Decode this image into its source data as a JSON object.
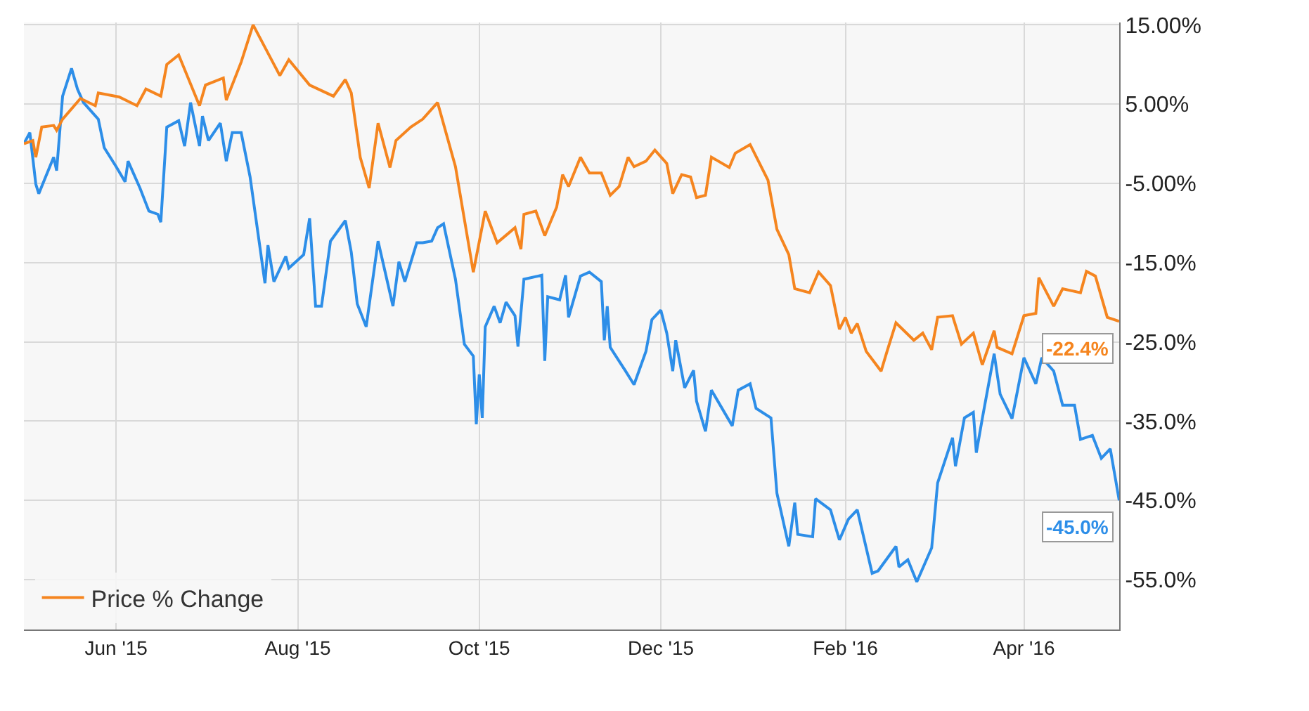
{
  "chart_data": {
    "type": "line",
    "xlim": [
      "2015-05-01",
      "2016-05-03"
    ],
    "xticks": [
      {
        "value": "2015-06-01",
        "label": "Jun '15"
      },
      {
        "value": "2015-08-01",
        "label": "Aug '15"
      },
      {
        "value": "2015-10-01",
        "label": "Oct '15"
      },
      {
        "value": "2015-12-01",
        "label": "Dec '15"
      },
      {
        "value": "2016-02-01",
        "label": "Feb '16"
      },
      {
        "value": "2016-04-01",
        "label": "Apr '16"
      }
    ],
    "ylim": [
      -61.3,
      15.3
    ],
    "yticks": [
      {
        "value": 15,
        "label": "15.00%"
      },
      {
        "value": 5,
        "label": "5.00%"
      },
      {
        "value": -5,
        "label": "-5.00%"
      },
      {
        "value": -15,
        "label": "-15.0%"
      },
      {
        "value": -25,
        "label": "-25.0%"
      },
      {
        "value": -35,
        "label": "-35.0%"
      },
      {
        "value": -45,
        "label": "-45.0%"
      },
      {
        "value": -55,
        "label": "-55.0%"
      }
    ],
    "grid": true,
    "legend": "bottom left",
    "annotations": [
      {
        "text": "-45.0%",
        "x": "2016-05-03",
        "y": -45.0
      },
      {
        "text": "-22.4%",
        "x": "2016-05-03",
        "y": -22.4
      }
    ],
    "marker": "none",
    "line_style": "solid",
    "series": [
      {
        "color": "#2d8ee8",
        "x": [
          "2015-05-01",
          "2015-05-03",
          "2015-05-05",
          "2015-05-06",
          "2015-05-11",
          "2015-05-12",
          "2015-05-14",
          "2015-05-17",
          "2015-05-19",
          "2015-05-21",
          "2015-05-26",
          "2015-05-28",
          "2015-06-01",
          "2015-06-04",
          "2015-06-05",
          "2015-06-09",
          "2015-06-12",
          "2015-06-15",
          "2015-06-16",
          "2015-06-18",
          "2015-06-22",
          "2015-06-24",
          "2015-06-26",
          "2015-06-29",
          "2015-06-30",
          "2015-07-02",
          "2015-07-06",
          "2015-07-08",
          "2015-07-10",
          "2015-07-13",
          "2015-07-16",
          "2015-07-21",
          "2015-07-22",
          "2015-07-24",
          "2015-07-28",
          "2015-07-29",
          "2015-08-03",
          "2015-08-05",
          "2015-08-07",
          "2015-08-09",
          "2015-08-12",
          "2015-08-17",
          "2015-08-19",
          "2015-08-21",
          "2015-08-24",
          "2015-08-28",
          "2015-09-02",
          "2015-09-04",
          "2015-09-06",
          "2015-09-10",
          "2015-09-12",
          "2015-09-15",
          "2015-09-17",
          "2015-09-19",
          "2015-09-23",
          "2015-09-26",
          "2015-09-29",
          "2015-09-30",
          "2015-10-01",
          "2015-10-02",
          "2015-10-03",
          "2015-10-06",
          "2015-10-08",
          "2015-10-10",
          "2015-10-13",
          "2015-10-14",
          "2015-10-16",
          "2015-10-22",
          "2015-10-23",
          "2015-10-24",
          "2015-10-28",
          "2015-10-30",
          "2015-10-31",
          "2015-11-04",
          "2015-11-07",
          "2015-11-11",
          "2015-11-12",
          "2015-11-13",
          "2015-11-14",
          "2015-11-19",
          "2015-11-22",
          "2015-11-26",
          "2015-11-28",
          "2015-12-01",
          "2015-12-03",
          "2015-12-05",
          "2015-12-06",
          "2015-12-09",
          "2015-12-12",
          "2015-12-13",
          "2015-12-16",
          "2015-12-18",
          "2015-12-25",
          "2015-12-27",
          "2015-12-31",
          "2016-01-02",
          "2016-01-07",
          "2016-01-09",
          "2016-01-13",
          "2016-01-15",
          "2016-01-16",
          "2016-01-21",
          "2016-01-22",
          "2016-01-27",
          "2016-01-30",
          "2016-02-02",
          "2016-02-05",
          "2016-02-10",
          "2016-02-12",
          "2016-02-18",
          "2016-02-19",
          "2016-02-22",
          "2016-02-25",
          "2016-03-01",
          "2016-03-03",
          "2016-03-08",
          "2016-03-09",
          "2016-03-12",
          "2016-03-15",
          "2016-03-16",
          "2016-03-18",
          "2016-03-22",
          "2016-03-24",
          "2016-03-28",
          "2016-04-01",
          "2016-04-05",
          "2016-04-07",
          "2016-04-11",
          "2016-04-14",
          "2016-04-18",
          "2016-04-20",
          "2016-04-24",
          "2016-04-27",
          "2016-04-30",
          "2016-05-03"
        ],
        "values": [
          0.0,
          1.4,
          -5.1,
          -6.3,
          -1.7,
          -3.4,
          6.0,
          9.5,
          6.9,
          5.2,
          3.1,
          -0.5,
          -2.9,
          -4.8,
          -2.2,
          -5.6,
          -8.5,
          -8.9,
          -9.9,
          2.1,
          2.9,
          -0.3,
          5.2,
          -0.3,
          3.5,
          0.4,
          2.6,
          -2.2,
          1.4,
          1.4,
          -4.2,
          -17.6,
          -12.8,
          -17.4,
          -14.2,
          -15.7,
          -14.0,
          -9.4,
          -20.5,
          -20.5,
          -12.3,
          -9.7,
          -13.7,
          -20.2,
          -23.1,
          -12.3,
          -20.5,
          -14.9,
          -17.4,
          -12.5,
          -12.5,
          -12.3,
          -10.6,
          -10.1,
          -17.1,
          -25.3,
          -26.8,
          -35.4,
          -29.1,
          -34.6,
          -23.1,
          -20.5,
          -22.6,
          -20.0,
          -21.7,
          -25.6,
          -17.1,
          -16.6,
          -27.4,
          -19.3,
          -19.7,
          -16.6,
          -21.9,
          -16.7,
          -16.2,
          -17.4,
          -24.8,
          -20.5,
          -25.7,
          -28.6,
          -30.4,
          -26.2,
          -22.2,
          -21.0,
          -23.9,
          -28.7,
          -24.8,
          -30.8,
          -28.6,
          -32.5,
          -36.3,
          -31.1,
          -35.6,
          -31.1,
          -30.3,
          -33.4,
          -34.6,
          -44.1,
          -50.8,
          -45.3,
          -49.3,
          -49.6,
          -44.8,
          -46.2,
          -50.0,
          -47.4,
          -46.2,
          -54.2,
          -53.9,
          -50.8,
          -53.4,
          -52.5,
          -55.3,
          -51.0,
          -42.8,
          -37.1,
          -40.7,
          -34.6,
          -33.9,
          -39.0,
          -34.7,
          -26.5,
          -31.6,
          -34.7,
          -27.0,
          -30.3,
          -27.0,
          -28.7,
          -33.0,
          -33.0,
          -37.3,
          -36.8,
          -39.7,
          -38.5,
          -45.0
        ]
      },
      {
        "name": "Price % Change",
        "color": "#f5851f",
        "x": [
          "2015-05-01",
          "2015-05-04",
          "2015-05-05",
          "2015-05-07",
          "2015-05-11",
          "2015-05-12",
          "2015-05-14",
          "2015-05-20",
          "2015-05-25",
          "2015-05-26",
          "2015-06-02",
          "2015-06-08",
          "2015-06-11",
          "2015-06-16",
          "2015-06-18",
          "2015-06-22",
          "2015-06-29",
          "2015-07-01",
          "2015-07-07",
          "2015-07-08",
          "2015-07-13",
          "2015-07-17",
          "2015-07-26",
          "2015-07-29",
          "2015-08-05",
          "2015-08-13",
          "2015-08-17",
          "2015-08-19",
          "2015-08-22",
          "2015-08-25",
          "2015-08-28",
          "2015-09-01",
          "2015-09-03",
          "2015-09-08",
          "2015-09-12",
          "2015-09-17",
          "2015-09-23",
          "2015-09-29",
          "2015-10-03",
          "2015-10-07",
          "2015-10-13",
          "2015-10-15",
          "2015-10-16",
          "2015-10-20",
          "2015-10-23",
          "2015-10-27",
          "2015-10-29",
          "2015-10-31",
          "2015-11-04",
          "2015-11-07",
          "2015-11-11",
          "2015-11-14",
          "2015-11-17",
          "2015-11-20",
          "2015-11-22",
          "2015-11-26",
          "2015-11-29",
          "2015-12-03",
          "2015-12-05",
          "2015-12-08",
          "2015-12-11",
          "2015-12-13",
          "2015-12-16",
          "2015-12-18",
          "2015-12-24",
          "2015-12-26",
          "2015-12-31",
          "2016-01-06",
          "2016-01-09",
          "2016-01-13",
          "2016-01-15",
          "2016-01-20",
          "2016-01-23",
          "2016-01-27",
          "2016-01-30",
          "2016-02-01",
          "2016-02-03",
          "2016-02-05",
          "2016-02-08",
          "2016-02-13",
          "2016-02-15",
          "2016-02-18",
          "2016-02-24",
          "2016-02-27",
          "2016-03-01",
          "2016-03-03",
          "2016-03-08",
          "2016-03-11",
          "2016-03-15",
          "2016-03-18",
          "2016-03-22",
          "2016-03-23",
          "2016-03-28",
          "2016-04-01",
          "2016-04-05",
          "2016-04-06",
          "2016-04-11",
          "2016-04-14",
          "2016-04-20",
          "2016-04-22",
          "2016-04-25",
          "2016-04-29",
          "2016-05-03"
        ],
        "values": [
          0.0,
          0.4,
          -1.7,
          2.1,
          2.3,
          1.7,
          3.1,
          5.7,
          4.8,
          6.4,
          5.9,
          4.8,
          6.9,
          6.0,
          10.0,
          11.2,
          4.8,
          7.4,
          8.3,
          5.5,
          10.3,
          15.0,
          8.6,
          10.6,
          7.4,
          6.0,
          8.1,
          6.4,
          -1.7,
          -5.6,
          2.6,
          -3.0,
          0.4,
          2.1,
          3.1,
          5.2,
          -2.9,
          -16.2,
          -8.5,
          -12.5,
          -10.6,
          -13.3,
          -8.9,
          -8.5,
          -11.6,
          -8.0,
          -3.9,
          -5.4,
          -1.7,
          -3.7,
          -3.7,
          -6.5,
          -5.4,
          -1.7,
          -2.9,
          -2.2,
          -0.8,
          -2.5,
          -6.3,
          -3.9,
          -4.2,
          -6.8,
          -6.5,
          -1.7,
          -3.0,
          -1.2,
          -0.1,
          -4.6,
          -10.8,
          -14.0,
          -18.3,
          -18.8,
          -16.2,
          -17.9,
          -23.4,
          -21.9,
          -23.9,
          -22.7,
          -26.2,
          -28.7,
          -26.2,
          -22.6,
          -24.8,
          -23.9,
          -26.0,
          -21.9,
          -21.7,
          -25.3,
          -23.9,
          -27.9,
          -23.6,
          -25.7,
          -26.5,
          -21.7,
          -21.4,
          -16.9,
          -20.5,
          -18.3,
          -18.8,
          -16.1,
          -16.7,
          -21.9,
          -22.4
        ]
      }
    ]
  }
}
